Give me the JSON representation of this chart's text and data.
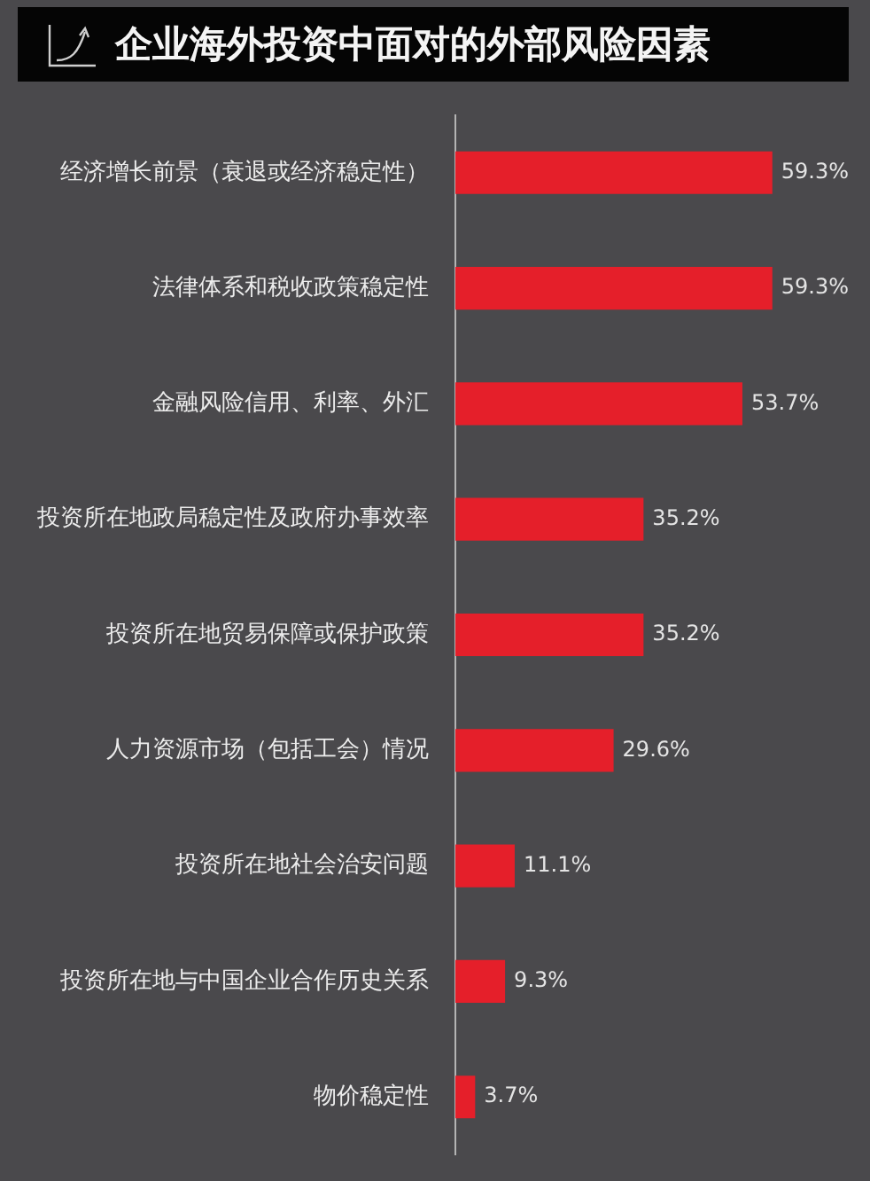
{
  "chart_data": {
    "type": "bar",
    "orientation": "horizontal",
    "title": "企业海外投资中面对的外部风险因素",
    "categories": [
      "经济增长前景（衰退或经济稳定性）",
      "法律体系和税收政策稳定性",
      "金融风险信用、利率、外汇",
      "投资所在地政局稳定性及政府办事效率",
      "投资所在地贸易保障或保护政策",
      "人力资源市场（包括工会）情况",
      "投资所在地社会治安问题",
      "投资所在地与中国企业合作历史关系",
      "物价稳定性"
    ],
    "values": [
      59.3,
      59.3,
      53.7,
      35.2,
      35.2,
      29.6,
      11.1,
      9.3,
      3.7
    ],
    "value_labels": [
      "59.3%",
      "59.3%",
      "53.7%",
      "35.2%",
      "35.2%",
      "29.6%",
      "11.1%",
      "9.3%",
      "3.7%"
    ],
    "color": "#e51f2a",
    "grid": false,
    "legend": false
  }
}
